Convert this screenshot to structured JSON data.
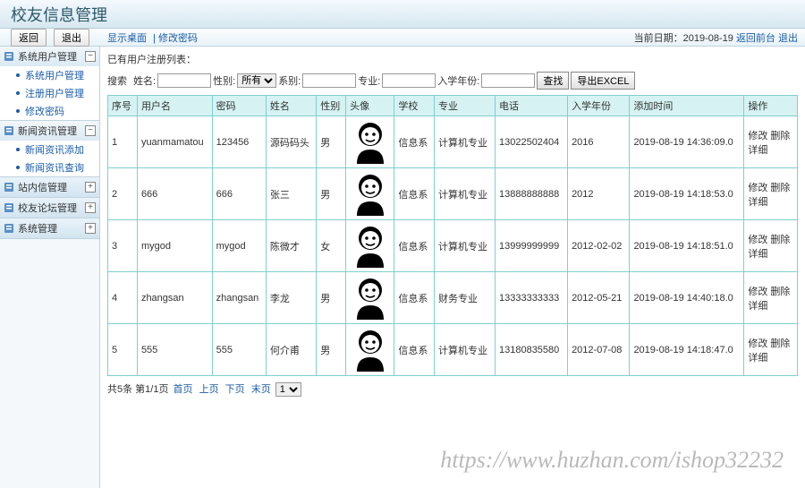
{
  "header": {
    "title": "校友信息管理"
  },
  "topbar": {
    "back": "返回",
    "exit": "退出",
    "crumb1": "显示桌面",
    "crumb2": "修改密码",
    "date_label": "当前日期：",
    "date": "2019-08-19",
    "back_front": "返回前台",
    "logout": "退出"
  },
  "sidebar": [
    {
      "label": "系统用户管理",
      "icon": "gear",
      "open": true,
      "items": [
        "系统用户管理",
        "注册用户管理",
        "修改密码"
      ]
    },
    {
      "label": "新闻资讯管理",
      "icon": "news",
      "open": true,
      "items": [
        "新闻资讯添加",
        "新闻资讯查询"
      ]
    },
    {
      "label": "站内信管理",
      "icon": "mail",
      "open": false,
      "items": []
    },
    {
      "label": "校友论坛管理",
      "icon": "forum",
      "open": false,
      "items": []
    },
    {
      "label": "系统管理",
      "icon": "sys",
      "open": false,
      "items": []
    }
  ],
  "list_title": "已有用户注册列表：",
  "search": {
    "label_prefix": "搜索",
    "name": "姓名:",
    "gender": "性别:",
    "gender_sel": "所有",
    "dept": "系别:",
    "major": "专业:",
    "year": "入学年份:",
    "btn": "查找",
    "export": "导出EXCEL"
  },
  "columns": [
    "序号",
    "用户名",
    "密码",
    "姓名",
    "性别",
    "头像",
    "学校",
    "专业",
    "电话",
    "入学年份",
    "添加时间",
    "操作"
  ],
  "rows": [
    {
      "idx": "1",
      "user": "yuanmamatou",
      "pwd": "123456",
      "name": "源码码头",
      "gender": "男",
      "school": "信息系",
      "major": "计算机专业",
      "phone": "13022502404",
      "year": "2016",
      "time": "2019-08-19 14:36:09.0"
    },
    {
      "idx": "2",
      "user": "666",
      "pwd": "666",
      "name": "张三",
      "gender": "男",
      "school": "信息系",
      "major": "计算机专业",
      "phone": "13888888888",
      "year": "2012",
      "time": "2019-08-19 14:18:53.0"
    },
    {
      "idx": "3",
      "user": "mygod",
      "pwd": "mygod",
      "name": "陈微才",
      "gender": "女",
      "school": "信息系",
      "major": "计算机专业",
      "phone": "13999999999",
      "year": "2012-02-02",
      "time": "2019-08-19 14:18:51.0"
    },
    {
      "idx": "4",
      "user": "zhangsan",
      "pwd": "zhangsan",
      "name": "李龙",
      "gender": "男",
      "school": "信息系",
      "major": "财务专业",
      "phone": "13333333333",
      "year": "2012-05-21",
      "time": "2019-08-19 14:40:18.0"
    },
    {
      "idx": "5",
      "user": "555",
      "pwd": "555",
      "name": "何介甫",
      "gender": "男",
      "school": "信息系",
      "major": "计算机专业",
      "phone": "13180835580",
      "year": "2012-07-08",
      "time": "2019-08-19 14:18:47.0"
    }
  ],
  "ops": {
    "edit": "修改",
    "del": "删除",
    "detail": "详细"
  },
  "pager": {
    "summary": "共5条 第1/1页",
    "first": "首页",
    "prev": "上页",
    "next": "下页",
    "last": "末页",
    "page_sel": "1"
  },
  "watermark": "https://www.huzhan.com/ishop32232",
  "colors": {
    "header_grad_top": "#f4f9fd",
    "header_grad_bot": "#d7e7f0",
    "table_border": "#7fcfd0",
    "table_head_bg": "#d6f2f2",
    "link": "#1a5ca8"
  }
}
